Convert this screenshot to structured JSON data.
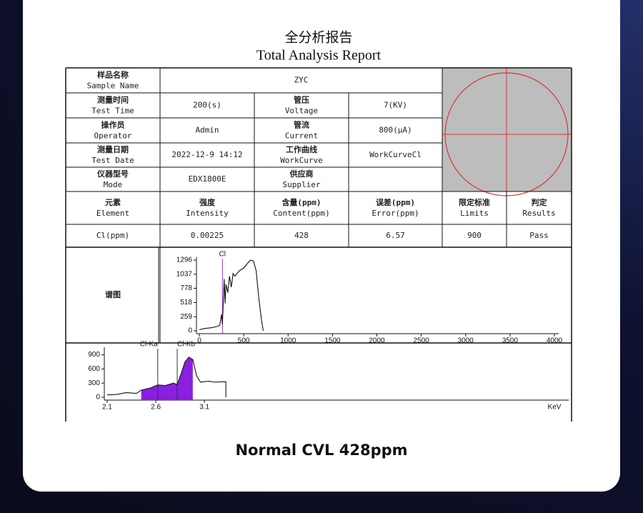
{
  "header": {
    "title_zh": "全分析报告",
    "title_en": "Total Analysis Report"
  },
  "info": [
    [
      [
        "样品名称",
        "Sample Name"
      ],
      "ZYC"
    ],
    [
      [
        "测量时间",
        "Test Time"
      ],
      "200(s)",
      [
        "管压",
        "Voltage"
      ],
      "7(KV)"
    ],
    [
      [
        "操作员",
        "Operator"
      ],
      "Admin",
      [
        "管流",
        "Current"
      ],
      "800(μA)"
    ],
    [
      [
        "测量日期",
        "Test Date"
      ],
      "2022-12-9 14:12",
      [
        "工作曲线",
        "WorkCurve"
      ],
      "WorkCurveCl"
    ],
    [
      [
        "仪器型号",
        "Mode"
      ],
      "EDX1800E",
      [
        "供应商",
        "Supplier"
      ]
    ]
  ],
  "results": {
    "header": [
      [
        "元素",
        "Element"
      ],
      [
        "强度",
        "Intensity"
      ],
      [
        "含量(ppm)",
        "Content(ppm)"
      ],
      [
        "误差(ppm)",
        "Error(ppm)"
      ],
      [
        "限定标准",
        "Limits"
      ],
      [
        "判定",
        "Results"
      ]
    ],
    "row": [
      "Cl(ppm)",
      "0.00225",
      "428",
      "6.57",
      "900",
      "Pass"
    ]
  },
  "spectrum_label": "谱图",
  "caption": "Normal CVL 428ppm",
  "chart_data": [
    {
      "type": "line",
      "x": [
        0,
        50,
        100,
        150,
        200,
        230,
        250,
        260,
        280,
        290,
        300,
        320,
        340,
        360,
        380,
        400,
        450,
        500,
        550,
        580,
        610,
        640,
        670,
        700,
        720
      ],
      "series": [
        {
          "color": "#111111",
          "values": [
            20,
            40,
            50,
            60,
            80,
            100,
            300,
            120,
            950,
            500,
            850,
            700,
            1000,
            800,
            1050,
            1000,
            1100,
            1150,
            1250,
            1296,
            1280,
            1100,
            600,
            200,
            0
          ]
        }
      ],
      "xlim": [
        0,
        4000
      ],
      "ylim": [
        0,
        1296
      ],
      "xticks": [
        0,
        500,
        1000,
        1500,
        2000,
        2500,
        3000,
        3500,
        4000
      ],
      "yticks": [
        0,
        259,
        518,
        778,
        1037,
        1296
      ],
      "markers": [
        {
          "label": "Cl",
          "x": 260,
          "color": "#9b30d9"
        }
      ]
    },
    {
      "type": "line",
      "x": [
        2.1,
        2.2,
        2.3,
        2.4,
        2.45,
        2.55,
        2.62,
        2.7,
        2.78,
        2.82,
        2.86,
        2.9,
        2.94,
        2.98,
        3.02,
        3.06,
        3.1,
        3.15,
        3.2,
        3.32,
        3.32
      ],
      "series": [
        {
          "color": "#111111",
          "values": [
            50,
            60,
            100,
            80,
            150,
            200,
            260,
            250,
            300,
            270,
            500,
            750,
            850,
            800,
            450,
            320,
            330,
            340,
            320,
            330,
            0
          ]
        }
      ],
      "xlim": [
        2.1,
        6.8
      ],
      "ylim": [
        0,
        1000
      ],
      "xticks": [
        2.1,
        2.6,
        3.1
      ],
      "yticks": [
        0,
        300,
        600,
        900
      ],
      "x_label": "KeV",
      "highlight": {
        "color": "#8a1fe0",
        "xlim": [
          2.45,
          3.0
        ]
      },
      "markers": [
        {
          "label": "Cl-Ka",
          "x": 2.62,
          "color": "#9b30d9"
        },
        {
          "label": "Cl-Kb",
          "x": 2.82,
          "color": "#9b30d9"
        }
      ]
    }
  ]
}
